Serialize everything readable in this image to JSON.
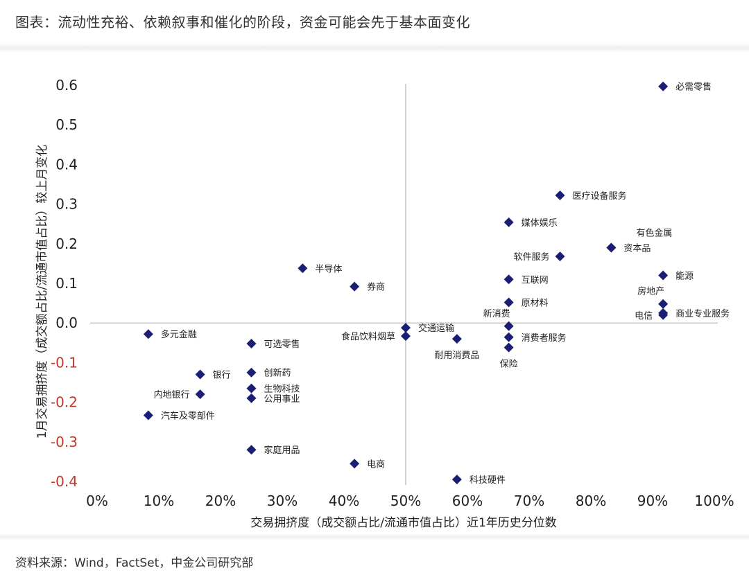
{
  "title": "图表：流动性充裕、依赖叙事和催化的阶段，资金可能会先于基本面变化",
  "source": "资料来源：Wind，FactSet，中金公司研究部",
  "chart_data": {
    "type": "scatter",
    "xlabel": "交易拥挤度（成交额占比/流通市值占比）近1年历史分位数",
    "ylabel": "1月交易拥挤度（成交额占比/流通市值占比）较上月变化",
    "xlim": [
      0,
      1
    ],
    "ylim": [
      -0.4,
      0.6
    ],
    "x_ticks": [
      {
        "v": 0,
        "label": "0%"
      },
      {
        "v": 0.1,
        "label": "10%"
      },
      {
        "v": 0.2,
        "label": "20%"
      },
      {
        "v": 0.3,
        "label": "30%"
      },
      {
        "v": 0.4,
        "label": "40%"
      },
      {
        "v": 0.5,
        "label": "50%"
      },
      {
        "v": 0.6,
        "label": "60%"
      },
      {
        "v": 0.7,
        "label": "70%"
      },
      {
        "v": 0.8,
        "label": "80%"
      },
      {
        "v": 0.9,
        "label": "90%"
      },
      {
        "v": 1.0,
        "label": "100%"
      }
    ],
    "y_ticks": [
      {
        "v": 0.6,
        "label": "0.6"
      },
      {
        "v": 0.5,
        "label": "0.5"
      },
      {
        "v": 0.4,
        "label": "0.4"
      },
      {
        "v": 0.3,
        "label": "0.3"
      },
      {
        "v": 0.2,
        "label": "0.2"
      },
      {
        "v": 0.1,
        "label": "0.1"
      },
      {
        "v": 0.0,
        "label": "0.0"
      },
      {
        "v": -0.1,
        "label": "-0.1"
      },
      {
        "v": -0.2,
        "label": "-0.2"
      },
      {
        "v": -0.3,
        "label": "-0.3"
      },
      {
        "v": -0.4,
        "label": "-0.4"
      }
    ],
    "crosshair": {
      "x": 0.5,
      "y": 0.0
    },
    "grid": false,
    "colors": {
      "marker": "#1b1f73",
      "axis_text": "#222222",
      "negative_tick": "#c0392b",
      "crosshair": "#b3b3b3"
    },
    "marker_shape": "diamond",
    "points": [
      {
        "name": "必需零售",
        "x": 0.917,
        "y": 0.597,
        "pos": "right"
      },
      {
        "name": "医疗设备服务",
        "x": 0.75,
        "y": 0.322,
        "pos": "right"
      },
      {
        "name": "媒体娱乐",
        "x": 0.667,
        "y": 0.254,
        "pos": "right"
      },
      {
        "name": "有色金属",
        "x": 0.833,
        "y": 0.19,
        "pos": "above-right"
      },
      {
        "name": "资本品",
        "x": 0.833,
        "y": 0.19,
        "pos": "right"
      },
      {
        "name": "软件服务",
        "x": 0.75,
        "y": 0.168,
        "pos": "left"
      },
      {
        "name": "能源",
        "x": 0.917,
        "y": 0.12,
        "pos": "right"
      },
      {
        "name": "互联网",
        "x": 0.667,
        "y": 0.11,
        "pos": "right"
      },
      {
        "name": "半导体",
        "x": 0.333,
        "y": 0.138,
        "pos": "right"
      },
      {
        "name": "券商",
        "x": 0.417,
        "y": 0.092,
        "pos": "right"
      },
      {
        "name": "原材料",
        "x": 0.667,
        "y": 0.052,
        "pos": "right"
      },
      {
        "name": "房地产",
        "x": 0.917,
        "y": 0.048,
        "pos": "above-left"
      },
      {
        "name": "商业专业服务",
        "x": 0.917,
        "y": 0.025,
        "pos": "right"
      },
      {
        "name": "电信",
        "x": 0.917,
        "y": 0.02,
        "pos": "left"
      },
      {
        "name": "新消费",
        "x": 0.667,
        "y": -0.008,
        "pos": "above-left"
      },
      {
        "name": "交通运输",
        "x": 0.5,
        "y": -0.012,
        "pos": "right"
      },
      {
        "name": "食品饮料烟草",
        "x": 0.5,
        "y": -0.033,
        "pos": "left"
      },
      {
        "name": "耐用消费品",
        "x": 0.583,
        "y": -0.04,
        "pos": "below"
      },
      {
        "name": "消费者服务",
        "x": 0.667,
        "y": -0.036,
        "pos": "right"
      },
      {
        "name": "保险",
        "x": 0.667,
        "y": -0.062,
        "pos": "below"
      },
      {
        "name": "多元金融",
        "x": 0.083,
        "y": -0.028,
        "pos": "right"
      },
      {
        "name": "可选零售",
        "x": 0.25,
        "y": -0.052,
        "pos": "right"
      },
      {
        "name": "创新药",
        "x": 0.25,
        "y": -0.125,
        "pos": "right"
      },
      {
        "name": "银行",
        "x": 0.167,
        "y": -0.13,
        "pos": "right"
      },
      {
        "name": "生物科技",
        "x": 0.25,
        "y": -0.165,
        "pos": "right"
      },
      {
        "name": "内地银行",
        "x": 0.167,
        "y": -0.18,
        "pos": "left"
      },
      {
        "name": "公用事业",
        "x": 0.25,
        "y": -0.19,
        "pos": "right"
      },
      {
        "name": "汽车及零部件",
        "x": 0.083,
        "y": -0.233,
        "pos": "right"
      },
      {
        "name": "家庭用品",
        "x": 0.25,
        "y": -0.32,
        "pos": "right"
      },
      {
        "name": "电商",
        "x": 0.417,
        "y": -0.355,
        "pos": "right"
      },
      {
        "name": "科技硬件",
        "x": 0.583,
        "y": -0.395,
        "pos": "right"
      }
    ]
  }
}
